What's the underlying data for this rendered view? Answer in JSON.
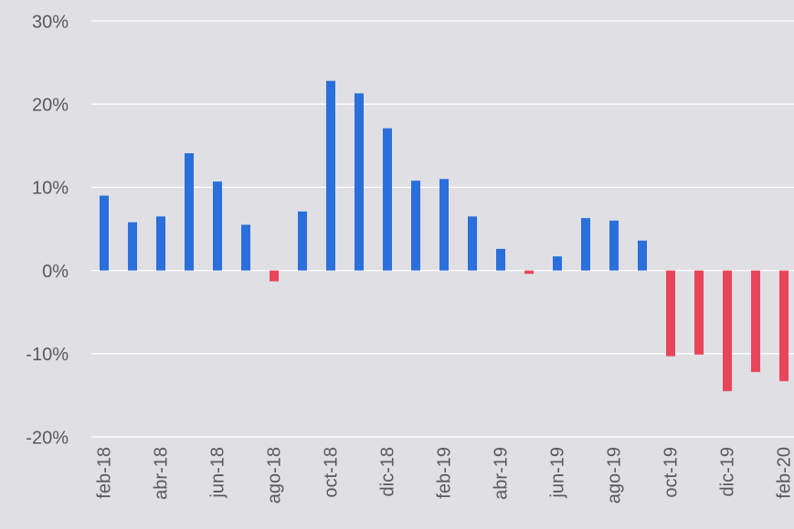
{
  "chart_data": {
    "type": "bar",
    "categories": [
      "feb-18",
      null,
      "abr-18",
      null,
      "jun-18",
      null,
      "ago-18",
      null,
      "oct-18",
      null,
      "dic-18",
      null,
      "feb-19",
      null,
      "abr-19",
      null,
      "jun-19",
      null,
      "ago-19",
      null,
      "oct-19",
      null,
      "dic-19",
      null,
      "feb-20"
    ],
    "values": [
      9.0,
      5.8,
      6.5,
      14.1,
      10.7,
      5.5,
      -1.3,
      7.1,
      22.8,
      21.3,
      17.1,
      10.8,
      11.0,
      6.5,
      2.6,
      -0.4,
      1.7,
      6.3,
      6.0,
      3.6,
      -10.3,
      -10.1,
      -14.5,
      -12.2,
      -13.3
    ],
    "color": "#2a6fdb",
    "negative_color": "#e8455a",
    "ylim": [
      -20,
      30
    ],
    "yticks": [
      {
        "value": -20,
        "label": "-20%"
      },
      {
        "value": -10,
        "label": "-10%"
      },
      {
        "value": 0,
        "label": "0%"
      },
      {
        "value": 10,
        "label": "10%"
      },
      {
        "value": 20,
        "label": "20%"
      },
      {
        "value": 30,
        "label": "30%"
      }
    ],
    "grid": true
  }
}
